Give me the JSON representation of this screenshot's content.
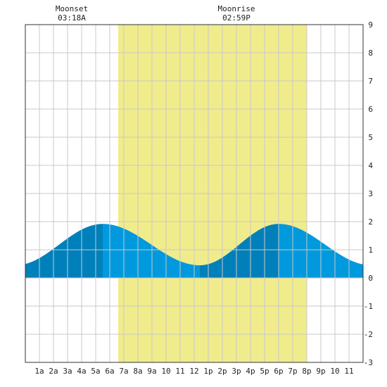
{
  "chart_data": {
    "type": "area",
    "xlim": [
      0,
      24
    ],
    "ylim": [
      -3,
      9
    ],
    "x_tick_labels": [
      "1a",
      "2a",
      "3a",
      "4a",
      "5a",
      "6a",
      "7a",
      "8a",
      "9a",
      "10",
      "11",
      "12",
      "1p",
      "2p",
      "3p",
      "4p",
      "5p",
      "6p",
      "7p",
      "8p",
      "9p",
      "10",
      "11"
    ],
    "y_ticks": [
      -3,
      -2,
      -1,
      0,
      1,
      2,
      3,
      4,
      5,
      6,
      7,
      8,
      9
    ],
    "grid": true,
    "daylight": {
      "start": 6.6,
      "end": 20.0,
      "color": "#f0ec8c"
    },
    "moon_events": [
      {
        "label": "Moonset",
        "time": "03:18A",
        "x": 3.3
      },
      {
        "label": "Moonrise",
        "time": "02:59P",
        "x": 15.0
      }
    ],
    "tide_extrema": [
      {
        "x": -0.7,
        "y": 0.45
      },
      {
        "x": 5.5,
        "y": 1.92
      },
      {
        "x": 12.4,
        "y": 0.45
      },
      {
        "x": 18.0,
        "y": 1.92
      },
      {
        "x": 24.6,
        "y": 0.45
      }
    ],
    "shade_split": [
      5.5,
      12.4,
      18.0
    ],
    "colors": {
      "tide_light": "#0099dd",
      "tide_dark": "#0080bb",
      "grid": "#c8c8c8",
      "frame": "#333333"
    }
  }
}
